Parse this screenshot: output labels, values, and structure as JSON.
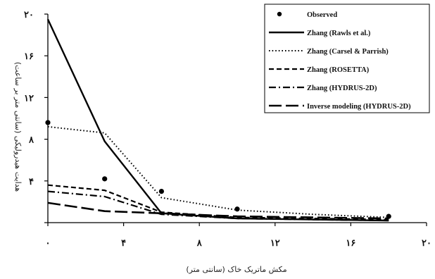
{
  "chart_data": {
    "type": "line",
    "xlabel": "مکش ماتریک خاک (سانتی متر)",
    "ylabel": "هدایت هیدرولیکی (سانتی متر بر ساعت)",
    "xlim": [
      0,
      20
    ],
    "ylim": [
      0,
      20
    ],
    "x_ticks": [
      "۰",
      "۴",
      "۸",
      "۱۲",
      "۱۶",
      "۲۰"
    ],
    "y_ticks": [
      "",
      "۴",
      "۸",
      "۱۲",
      "۱۶",
      "۲۰"
    ],
    "grid": false,
    "legend_position": "top-right",
    "observed": {
      "name": "Observed",
      "points": [
        [
          0,
          9.6
        ],
        [
          3.0,
          4.2
        ],
        [
          6.0,
          3.0
        ],
        [
          10.0,
          1.3
        ],
        [
          18.0,
          0.6
        ]
      ]
    },
    "series": [
      {
        "name": "Zhang (Rawls et al.)",
        "style": "solid",
        "x": [
          0,
          3,
          6,
          10,
          14,
          18
        ],
        "y": [
          19.5,
          7.8,
          0.9,
          0.4,
          0.3,
          0.2
        ]
      },
      {
        "name": "Zhang (Carsel & Parrish)",
        "style": "dotted",
        "x": [
          0,
          3,
          6,
          10,
          14,
          18
        ],
        "y": [
          9.2,
          8.6,
          2.4,
          1.2,
          0.8,
          0.5
        ]
      },
      {
        "name": "Zhang (ROSETTA)",
        "style": "dashed",
        "x": [
          0,
          3,
          6,
          10,
          14,
          18
        ],
        "y": [
          3.6,
          3.1,
          1.0,
          0.5,
          0.4,
          0.3
        ]
      },
      {
        "name": "Zhang (HYDRUS-2D)",
        "style": "dashdot",
        "x": [
          0,
          3,
          6,
          10,
          14,
          18
        ],
        "y": [
          3.0,
          2.5,
          0.8,
          0.4,
          0.3,
          0.2
        ]
      },
      {
        "name": "Inverse modeling (HYDRUS-2D)",
        "style": "longdash",
        "x": [
          0,
          3,
          6,
          10,
          14,
          18
        ],
        "y": [
          1.9,
          1.1,
          0.9,
          0.6,
          0.5,
          0.4
        ]
      }
    ]
  }
}
